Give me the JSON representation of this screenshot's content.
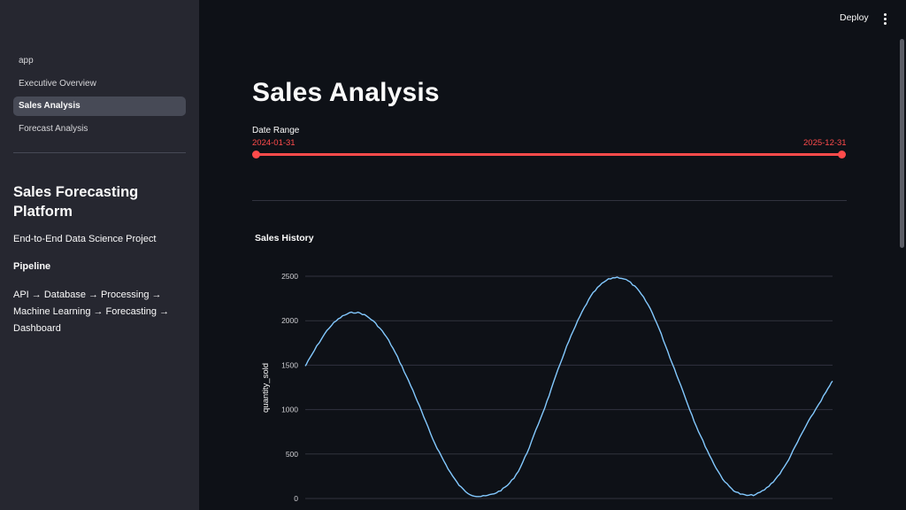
{
  "sidebar": {
    "nav": [
      {
        "label": "app",
        "active": false
      },
      {
        "label": "Executive Overview",
        "active": false
      },
      {
        "label": "Sales Analysis",
        "active": true
      },
      {
        "label": "Forecast Analysis",
        "active": false
      }
    ],
    "title": "Sales Forecasting Platform",
    "subtitle": "End-to-End Data Science Project",
    "pipeline_heading": "Pipeline",
    "pipeline_flow": "API → Database → Processing → Machine Learning → Forecasting → Dashboard"
  },
  "header": {
    "deploy_label": "Deploy",
    "menu_icon": "vertical-ellipsis-icon"
  },
  "main": {
    "title": "Sales Analysis",
    "date_range": {
      "label": "Date Range",
      "min": "2024-01-31",
      "max": "2025-12-31",
      "selected_start": "2024-01-31",
      "selected_end": "2025-12-31"
    },
    "chart_heading": "Sales History"
  },
  "colors": {
    "accent": "#ff4b4b",
    "line": "#83c9ff",
    "sidebar_bg": "#262730",
    "main_bg": "#0e1117"
  },
  "chart_data": {
    "type": "line",
    "title": "Sales History",
    "xlabel": "",
    "ylabel": "quantity_sold",
    "ylim": [
      0,
      2500
    ],
    "yticks": [
      "0",
      "500",
      "1000",
      "1500",
      "2000",
      "2500"
    ],
    "grid": true,
    "legend": "none",
    "series": [
      {
        "x": [
          "2024-01-31",
          "2024-03-06",
          "2024-04-10",
          "2024-05-15",
          "2024-06-19",
          "2024-07-24",
          "2024-08-28",
          "2024-10-02",
          "2024-11-06",
          "2024-12-11",
          "2025-01-15",
          "2025-02-19",
          "2025-03-26",
          "2025-04-30",
          "2025-06-04",
          "2025-07-09",
          "2025-08-13",
          "2025-09-17",
          "2025-10-22",
          "2025-11-26",
          "2025-12-31"
        ],
        "values": [
          1490,
          1950,
          2090,
          1850,
          1270,
          570,
          100,
          40,
          270,
          960,
          1770,
          2340,
          2480,
          2180,
          1460,
          700,
          160,
          40,
          280,
          820,
          1320
        ]
      }
    ]
  }
}
